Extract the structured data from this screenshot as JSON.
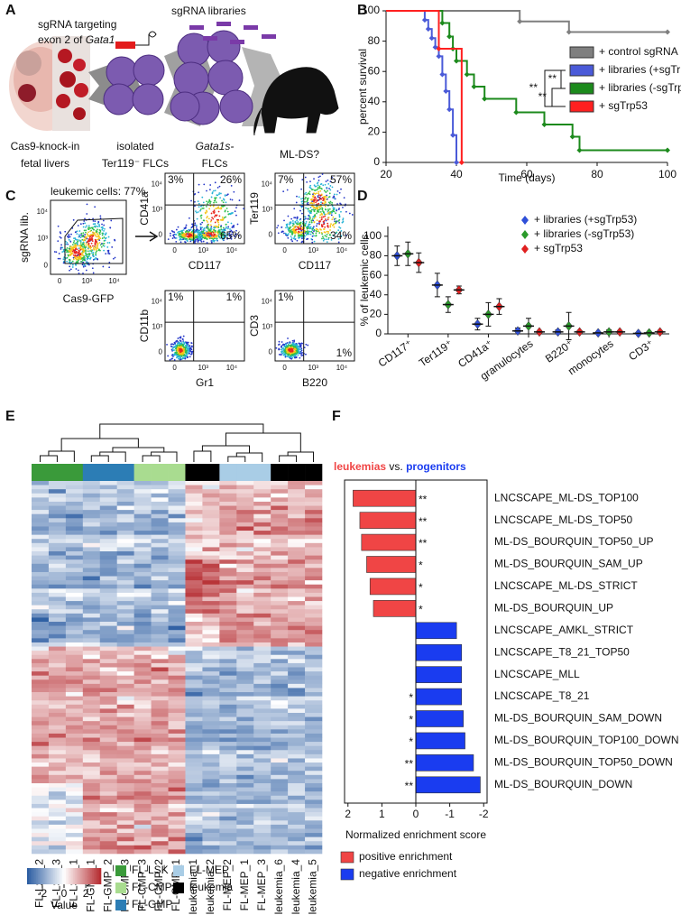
{
  "panels": {
    "a": {
      "label": "A",
      "target": [
        "sgRNA targeting",
        "exon 2 of ",
        "Gata1"
      ],
      "libraries": "sgRNA libraries",
      "steps": [
        [
          "Cas9-knock-in",
          "fetal livers"
        ],
        [
          "isolated",
          "Ter119⁻ FLCs"
        ],
        [
          "Gata1s-",
          "FLCs"
        ],
        [
          "ML-DS?"
        ]
      ]
    },
    "b": {
      "label": "B"
    },
    "c": {
      "label": "C",
      "gate_label": "leukemic cells: 77%",
      "x_label": "Cas9-GFP",
      "y_label": "sgRNA lib.",
      "ticks": [
        "0",
        "10³",
        "10⁴"
      ],
      "plots": [
        {
          "x_label": "CD117",
          "y_label": "CD41a",
          "quadrants": {
            "ul": "3%",
            "ur": "26%",
            "lr": "65%"
          }
        },
        {
          "x_label": "CD117",
          "y_label": "Ter119",
          "quadrants": {
            "ul": "7%",
            "ur": "57%",
            "lr": "34%"
          }
        },
        {
          "x_label": "Gr1",
          "y_label": "CD11b",
          "quadrants": {
            "ul": "1%",
            "ur": "1%"
          }
        },
        {
          "x_label": "B220",
          "y_label": "CD3",
          "quadrants": {
            "ul": "1%",
            "lr": "1%"
          }
        }
      ]
    },
    "d": {
      "label": "D"
    },
    "e": {
      "label": "E",
      "columns": [
        "FL-LSK_2",
        "FL-LSK_3",
        "FL-LSK_1",
        "FL-GMP_1",
        "FL-GMP_2",
        "FL-GMP_3",
        "FL-CMP_3",
        "FL-CMP_2",
        "FL-CMP_1",
        "leukemia_1",
        "leukemia_2",
        "FL-MEP_2",
        "FL-MEP_1",
        "FL-MEP_3",
        "leukemia_6",
        "leukemia_4",
        "leukemia_5"
      ],
      "groups": [
        {
          "name": "FL-LSK",
          "color": "#3a9a3a"
        },
        {
          "name": "FL-CMP",
          "color": "#a9dc90"
        },
        {
          "name": "FL-GMP",
          "color": "#2c7db5"
        },
        {
          "name": "FL-MEP",
          "color": "#a9cde6"
        },
        {
          "name": "leukemia",
          "color": "#000000"
        }
      ],
      "colorbar": {
        "label": "Value",
        "lim": [
          -3.4,
          3.4
        ],
        "ticks": [
          -2,
          0,
          2
        ]
      }
    },
    "f": {
      "label": "F"
    }
  },
  "chart_data": [
    {
      "type": "step",
      "xlabel": "Time (days)",
      "ylabel": "percent survival",
      "xlim": [
        20,
        100
      ],
      "xticks": [
        20,
        40,
        60,
        80,
        100
      ],
      "ylim": [
        0,
        100
      ],
      "yticks": [
        0,
        20,
        40,
        60,
        80,
        100
      ],
      "legend": "upper right",
      "annotations": [
        "**",
        "**",
        "**"
      ],
      "series": [
        {
          "name": "+ control sgRNA",
          "color": "#7f7f7f",
          "x": [
            20,
            58,
            72,
            100
          ],
          "values": [
            100,
            93,
            86,
            86
          ]
        },
        {
          "name": "+ libraries (+sgTrp53)",
          "color": "#4a5ad8",
          "x": [
            20,
            31,
            32,
            33,
            34,
            35,
            36,
            37,
            38,
            39,
            40
          ],
          "values": [
            100,
            94,
            88,
            82,
            76,
            70,
            58,
            47,
            35,
            18,
            0
          ]
        },
        {
          "name": "+ libraries (-sgTrp53)",
          "color": "#1c8a1c",
          "x": [
            20,
            36,
            38,
            39,
            40,
            43,
            45,
            48,
            57,
            65,
            73,
            75,
            100
          ],
          "values": [
            100,
            92,
            83,
            75,
            67,
            58,
            50,
            42,
            33,
            25,
            17,
            8,
            8
          ]
        },
        {
          "name": "+ sgTrp53",
          "color": "#ff2020",
          "x": [
            20,
            35,
            41.5
          ],
          "values": [
            100,
            75,
            0
          ]
        }
      ]
    },
    {
      "type": "dot",
      "ylabel": "% of leukemic cells",
      "categories": [
        "CD117⁺",
        "Ter119⁺",
        "CD41a⁺",
        "granulocytes",
        "B220⁺",
        "monocytes",
        "CD3⁺"
      ],
      "ylim": [
        0,
        110
      ],
      "yticks": [
        0,
        20,
        40,
        60,
        80,
        100
      ],
      "legend": "upper right",
      "series": [
        {
          "name": "+ libraries (+sgTrp53)",
          "color": "#2f4fd8",
          "values": [
            80,
            50,
            10,
            3,
            2,
            1,
            0.5
          ],
          "errors": [
            10,
            12,
            6,
            3,
            2,
            1,
            0.5
          ]
        },
        {
          "name": "+ libraries (-sgTrp53)",
          "color": "#2a9a2a",
          "values": [
            82,
            30,
            20,
            8,
            8,
            2,
            1
          ],
          "errors": [
            12,
            8,
            12,
            8,
            14,
            2,
            1
          ]
        },
        {
          "name": "+ sgTrp53",
          "color": "#e02020",
          "values": [
            73,
            45,
            28,
            2,
            2,
            2,
            2
          ],
          "errors": [
            10,
            4,
            8,
            1,
            1,
            1,
            1
          ]
        }
      ]
    },
    {
      "type": "barh",
      "title": [
        "leukemias",
        " vs. ",
        "progenitors"
      ],
      "xlabel": "Normalized enrichment score",
      "categories": [
        "LNCSCAPE_ML-DS_TOP100",
        "LNCSCAPE_ML-DS_TOP50",
        "ML-DS_BOURQUIN_TOP50_UP",
        "ML-DS_BOURQUIN_SAM_UP",
        "LNCSCAPE_ML-DS_STRICT",
        "ML-DS_BOURQUIN_UP",
        "LNCSCAPE_AMKL_STRICT",
        "LNCSCAPE_T8_21_TOP50",
        "LNCSCAPE_MLL",
        "LNCSCAPE_T8_21",
        "ML-DS_BOURQUIN_SAM_DOWN",
        "ML-DS_BOURQUIN_TOP100_DOWN",
        "ML-DS_BOURQUIN_TOP50_DOWN",
        "ML-DS_BOURQUIN_DOWN"
      ],
      "values": [
        1.85,
        1.65,
        1.6,
        1.45,
        1.35,
        1.25,
        -1.2,
        -1.35,
        -1.35,
        -1.35,
        -1.4,
        -1.45,
        -1.7,
        -1.9
      ],
      "significance": [
        "**",
        "**",
        "**",
        "*",
        "*",
        "*",
        null,
        null,
        null,
        "*",
        "*",
        "*",
        "**",
        "**"
      ],
      "xlim": [
        2.1,
        -2.1
      ],
      "xticks": [
        2,
        1,
        0,
        -1,
        -2
      ],
      "legend": [
        {
          "name": "positive enrichment",
          "color": "#f04545"
        },
        {
          "name": "negative enrichment",
          "color": "#1a3cf0"
        }
      ]
    }
  ]
}
